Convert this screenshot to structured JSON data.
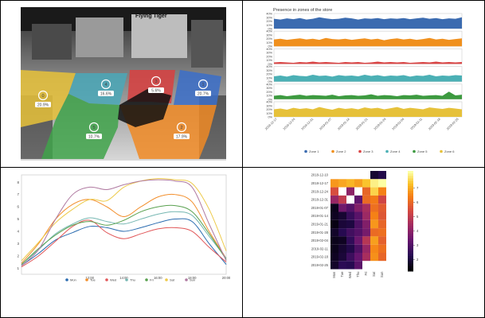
{
  "chart_data": [
    {
      "type": "image",
      "content": "store-floorplan-zones",
      "zones": [
        {
          "label": "0",
          "value": "20.9%",
          "color": "#e8c23a"
        },
        {
          "label": "4",
          "value": "16.6%",
          "color": "#4aa8b8"
        },
        {
          "label": "3",
          "value": "5.6%",
          "color": "#d94040"
        },
        {
          "label": "1",
          "value": "20.7%",
          "color": "#3b6fc9"
        },
        {
          "label": "5",
          "value": "10.7%",
          "color": "#3fa34a"
        },
        {
          "label": "2",
          "value": "17.9%",
          "color": "#f08a24"
        }
      ],
      "signage": "Flying Tiger"
    },
    {
      "type": "area",
      "title": "Presence in zones of the store",
      "yticks": [
        "40%",
        "30%",
        "20%",
        "10%",
        "0%"
      ],
      "xtick_labels": [
        "2018-12-17",
        "2018-12-24",
        "2018-12-31",
        "2019-01-07",
        "2019-01-14",
        "2019-01-21",
        "2019-01-28",
        "2019-02-04",
        "2019-02-11",
        "2019-02-18",
        "2019-02-25"
      ],
      "series": [
        {
          "name": "Zone 1",
          "color": "#3b6bb0",
          "values": [
            26,
            24,
            27,
            25,
            28,
            24,
            26,
            30,
            27,
            25,
            26,
            29,
            27,
            24,
            27,
            26,
            28,
            25,
            27,
            26,
            28,
            25,
            27,
            29,
            26,
            28,
            25,
            27,
            26,
            30
          ]
        },
        {
          "name": "Zone 2",
          "color": "#f0901e",
          "values": [
            18,
            20,
            17,
            19,
            21,
            18,
            20,
            17,
            22,
            19,
            18,
            20,
            17,
            19,
            21,
            18,
            20,
            16,
            19,
            21,
            18,
            20,
            17,
            19,
            22,
            18,
            20,
            17,
            19,
            21
          ]
        },
        {
          "name": "Zone 3",
          "color": "#d94444",
          "values": [
            4,
            5,
            4,
            3,
            5,
            4,
            6,
            4,
            5,
            4,
            3,
            5,
            4,
            5,
            3,
            4,
            6,
            4,
            5,
            4,
            5,
            3,
            4,
            5,
            4,
            6,
            4,
            5,
            4,
            5
          ]
        },
        {
          "name": "Zone 4",
          "color": "#4bb0b5",
          "values": [
            14,
            16,
            13,
            17,
            15,
            14,
            18,
            15,
            16,
            13,
            17,
            15,
            16,
            14,
            18,
            15,
            17,
            14,
            16,
            15,
            17,
            13,
            16,
            15,
            18,
            14,
            16,
            15,
            17,
            16
          ]
        },
        {
          "name": "Zone 5",
          "color": "#3c9a3f",
          "values": [
            9,
            11,
            8,
            10,
            12,
            9,
            11,
            10,
            9,
            12,
            8,
            10,
            11,
            9,
            10,
            13,
            9,
            11,
            10,
            8,
            11,
            10,
            12,
            9,
            10,
            11,
            9,
            20,
            10,
            12
          ]
        },
        {
          "name": "Zone 6",
          "color": "#e6c13a",
          "values": [
            20,
            22,
            19,
            24,
            21,
            23,
            20,
            26,
            22,
            19,
            24,
            21,
            23,
            20,
            25,
            22,
            24,
            20,
            23,
            26,
            21,
            24,
            22,
            20,
            25,
            23,
            21,
            24,
            22,
            20
          ]
        }
      ],
      "ylim": [
        0,
        40
      ]
    },
    {
      "type": "line",
      "x": [
        "8:00",
        "9:00",
        "10:00",
        "11:00",
        "12:00",
        "13:00",
        "14:00",
        "15:00",
        "16:00",
        "17:00",
        "18:00",
        "19:00",
        "20:00"
      ],
      "xtick_labels": [
        "12:00",
        "14:00",
        "16:00",
        "18:00",
        "20:00"
      ],
      "yticks": [
        "1",
        "2",
        "3",
        "4",
        "5",
        "6",
        "7",
        "8"
      ],
      "ylim": [
        0.5,
        8.6
      ],
      "series": [
        {
          "name": "Mon",
          "color": "#2b6cb0",
          "values": [
            1.2,
            2.2,
            3.3,
            3.9,
            4.4,
            4.3,
            4.0,
            4.3,
            4.7,
            5.0,
            4.8,
            3.0,
            1.3
          ]
        },
        {
          "name": "Tue",
          "color": "#f28e2b",
          "values": [
            1.4,
            3.0,
            5.0,
            6.2,
            6.6,
            6.0,
            5.2,
            6.0,
            6.8,
            7.0,
            6.4,
            4.0,
            1.8
          ]
        },
        {
          "name": "Wed",
          "color": "#e15759",
          "values": [
            1.1,
            2.0,
            3.2,
            4.4,
            4.9,
            3.9,
            3.4,
            3.8,
            4.2,
            4.3,
            4.0,
            2.7,
            1.5
          ]
        },
        {
          "name": "Thu",
          "color": "#76b7b2",
          "values": [
            1.3,
            2.5,
            3.8,
            4.6,
            5.1,
            4.8,
            4.6,
            5.0,
            5.4,
            5.6,
            5.3,
            3.6,
            1.8
          ]
        },
        {
          "name": "Fri",
          "color": "#59a14f",
          "values": [
            1.3,
            2.6,
            3.7,
            4.5,
            4.8,
            4.5,
            4.9,
            5.6,
            6.0,
            6.1,
            5.6,
            3.8,
            1.7
          ]
        },
        {
          "name": "Sat",
          "color": "#edc948",
          "values": [
            1.6,
            3.1,
            4.7,
            5.8,
            6.6,
            6.5,
            7.6,
            8.1,
            8.3,
            8.2,
            7.9,
            5.8,
            2.4
          ]
        },
        {
          "name": "Sun",
          "color": "#b07aa1",
          "values": [
            1.2,
            2.5,
            5.0,
            7.0,
            7.6,
            7.4,
            7.8,
            8.1,
            8.2,
            8.1,
            7.6,
            4.6,
            1.6
          ]
        }
      ]
    },
    {
      "type": "heatmap",
      "rows": [
        "2018-12-10",
        "2018-12-17",
        "2018-12-24",
        "2018-12-31",
        "2019-01-07",
        "2019-01-14",
        "2019-01-21",
        "2019-01-28",
        "2019-02-04",
        "2019-02-11",
        "2019-02-18",
        "2019-02-25"
      ],
      "cols": [
        "Mon",
        "Tue",
        "Wed",
        "Thu",
        "Fri",
        "Sat",
        "Sun"
      ],
      "values": [
        [
          null,
          null,
          null,
          null,
          null,
          1.8,
          2.1
        ],
        [
          6.8,
          7.0,
          7.2,
          6.9,
          7.4,
          8.0,
          8.2
        ],
        [
          5.5,
          null,
          4.0,
          null,
          6.0,
          7.6,
          6.5
        ],
        [
          4.2,
          5.0,
          null,
          3.2,
          6.1,
          6.4,
          5.3
        ],
        [
          1.5,
          3.5,
          3.0,
          3.8,
          4.5,
          6.2,
          5.8
        ],
        [
          1.6,
          1.8,
          2.5,
          3.1,
          4.3,
          6.5,
          5.7
        ],
        [
          1.4,
          1.9,
          2.0,
          2.9,
          3.8,
          6.8,
          6.0
        ],
        [
          1.7,
          2.2,
          2.7,
          3.0,
          3.6,
          6.1,
          6.2
        ],
        [
          1.5,
          1.6,
          2.4,
          3.4,
          4.8,
          6.9,
          5.9
        ],
        [
          1.5,
          1.8,
          2.1,
          2.9,
          4.2,
          6.6,
          6.2
        ],
        [
          1.6,
          1.9,
          2.6,
          3.3,
          4.5,
          6.7,
          6.0
        ],
        [
          1.7,
          2.3,
          2.2,
          3.1,
          null,
          null,
          null
        ]
      ],
      "colorbar": {
        "ticks": [
          "7",
          "6",
          "5",
          "4",
          "3",
          "2"
        ],
        "range": [
          1.2,
          8.2
        ]
      }
    }
  ]
}
